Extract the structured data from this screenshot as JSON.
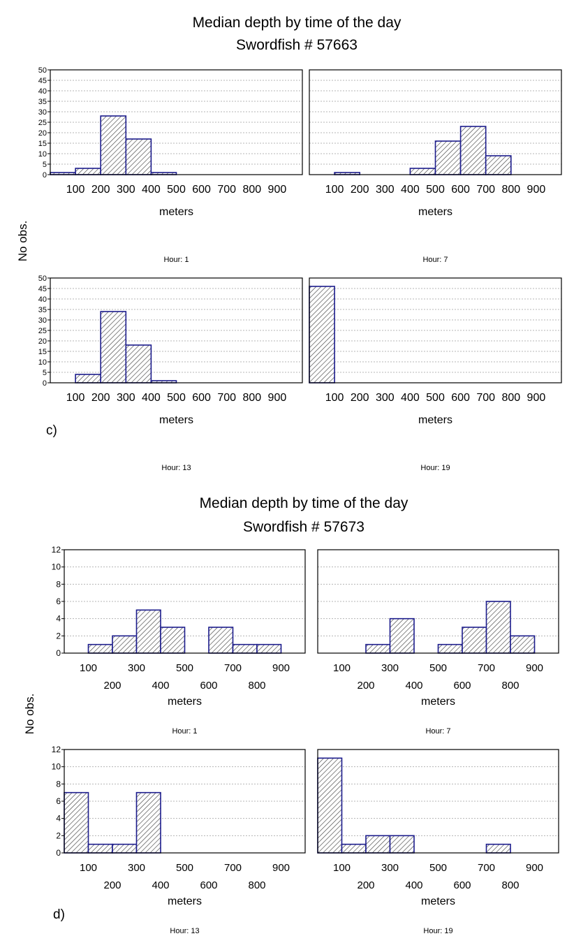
{
  "figure_c": {
    "title": "Median depth by time of the day",
    "subtitle": "Swordfish # 57663",
    "ylabel": "No obs.",
    "panel_label": "c)"
  },
  "figure_d": {
    "title": "Median depth by time of the day",
    "subtitle": "Swordfish # 57673",
    "ylabel": "No obs.",
    "panel_label": "d)"
  },
  "colors": {
    "bar_stroke": "#1c1c8c",
    "hatch": "#444444",
    "grid": "#b4b4b4",
    "axis": "#000000"
  },
  "chart_data": [
    {
      "type": "bar",
      "figure": "c",
      "hour_label": "Hour: 1",
      "xlabel": "meters",
      "ylim": [
        0,
        50
      ],
      "yticks": [
        "0",
        "5",
        "10",
        "15",
        "20",
        "25",
        "30",
        "35",
        "40",
        "45",
        "50"
      ],
      "xticks": [
        "100",
        "200",
        "300",
        "400",
        "500",
        "600",
        "700",
        "800",
        "900"
      ],
      "bins": [
        [
          0,
          100
        ],
        [
          100,
          200
        ],
        [
          200,
          300
        ],
        [
          300,
          400
        ],
        [
          400,
          500
        ],
        [
          500,
          600
        ],
        [
          600,
          700
        ],
        [
          700,
          800
        ],
        [
          800,
          900
        ],
        [
          900,
          1000
        ]
      ],
      "values": [
        1,
        3,
        28,
        17,
        1,
        0,
        0,
        0,
        0,
        0
      ]
    },
    {
      "type": "bar",
      "figure": "c",
      "hour_label": "Hour: 7",
      "xlabel": "meters",
      "ylim": [
        0,
        50
      ],
      "yticks": [],
      "xticks": [
        "100",
        "200",
        "300",
        "400",
        "500",
        "600",
        "700",
        "800",
        "900"
      ],
      "bins": [
        [
          0,
          100
        ],
        [
          100,
          200
        ],
        [
          200,
          300
        ],
        [
          300,
          400
        ],
        [
          400,
          500
        ],
        [
          500,
          600
        ],
        [
          600,
          700
        ],
        [
          700,
          800
        ],
        [
          800,
          900
        ],
        [
          900,
          1000
        ]
      ],
      "values": [
        0,
        1,
        0,
        0,
        3,
        16,
        23,
        9,
        0,
        0
      ]
    },
    {
      "type": "bar",
      "figure": "c",
      "hour_label": "Hour: 13",
      "xlabel": "meters",
      "ylim": [
        0,
        50
      ],
      "yticks": [
        "0",
        "5",
        "10",
        "15",
        "20",
        "25",
        "30",
        "35",
        "40",
        "45",
        "50"
      ],
      "xticks": [
        "100",
        "200",
        "300",
        "400",
        "500",
        "600",
        "700",
        "800",
        "900"
      ],
      "bins": [
        [
          0,
          100
        ],
        [
          100,
          200
        ],
        [
          200,
          300
        ],
        [
          300,
          400
        ],
        [
          400,
          500
        ],
        [
          500,
          600
        ],
        [
          600,
          700
        ],
        [
          700,
          800
        ],
        [
          800,
          900
        ],
        [
          900,
          1000
        ]
      ],
      "values": [
        0,
        4,
        34,
        18,
        1,
        0,
        0,
        0,
        0,
        0
      ]
    },
    {
      "type": "bar",
      "figure": "c",
      "hour_label": "Hour: 19",
      "xlabel": "meters",
      "ylim": [
        0,
        50
      ],
      "yticks": [],
      "xticks": [
        "100",
        "200",
        "300",
        "400",
        "500",
        "600",
        "700",
        "800",
        "900"
      ],
      "bins": [
        [
          0,
          100
        ],
        [
          100,
          200
        ],
        [
          200,
          300
        ],
        [
          300,
          400
        ],
        [
          400,
          500
        ],
        [
          500,
          600
        ],
        [
          600,
          700
        ],
        [
          700,
          800
        ],
        [
          800,
          900
        ],
        [
          900,
          1000
        ]
      ],
      "values": [
        46,
        0,
        0,
        0,
        0,
        0,
        0,
        0,
        0,
        0
      ]
    },
    {
      "type": "bar",
      "figure": "d",
      "hour_label": "Hour: 1",
      "xlabel": "meters",
      "ylim": [
        0,
        12
      ],
      "yticks": [
        "0",
        "2",
        "4",
        "6",
        "8",
        "10",
        "12"
      ],
      "xticks_upper": [
        "100",
        "300",
        "500",
        "700",
        "900"
      ],
      "xticks_lower": [
        "200",
        "400",
        "600",
        "800"
      ],
      "bins": [
        [
          0,
          100
        ],
        [
          100,
          200
        ],
        [
          200,
          300
        ],
        [
          300,
          400
        ],
        [
          400,
          500
        ],
        [
          500,
          600
        ],
        [
          600,
          700
        ],
        [
          700,
          800
        ],
        [
          800,
          900
        ],
        [
          900,
          1000
        ]
      ],
      "values": [
        0,
        1,
        2,
        5,
        3,
        0,
        3,
        1,
        1,
        0
      ]
    },
    {
      "type": "bar",
      "figure": "d",
      "hour_label": "Hour: 7",
      "xlabel": "meters",
      "ylim": [
        0,
        12
      ],
      "yticks": [],
      "xticks_upper": [
        "100",
        "300",
        "500",
        "700",
        "900"
      ],
      "xticks_lower": [
        "200",
        "400",
        "600",
        "800"
      ],
      "bins": [
        [
          0,
          100
        ],
        [
          100,
          200
        ],
        [
          200,
          300
        ],
        [
          300,
          400
        ],
        [
          400,
          500
        ],
        [
          500,
          600
        ],
        [
          600,
          700
        ],
        [
          700,
          800
        ],
        [
          800,
          900
        ],
        [
          900,
          1000
        ]
      ],
      "values": [
        0,
        0,
        1,
        4,
        0,
        1,
        3,
        6,
        2,
        0
      ]
    },
    {
      "type": "bar",
      "figure": "d",
      "hour_label": "Hour: 13",
      "xlabel": "meters",
      "ylim": [
        0,
        12
      ],
      "yticks": [
        "0",
        "2",
        "4",
        "6",
        "8",
        "10",
        "12"
      ],
      "xticks_upper": [
        "100",
        "300",
        "500",
        "700",
        "900"
      ],
      "xticks_lower": [
        "200",
        "400",
        "600",
        "800"
      ],
      "bins": [
        [
          0,
          100
        ],
        [
          100,
          200
        ],
        [
          200,
          300
        ],
        [
          300,
          400
        ],
        [
          400,
          500
        ],
        [
          500,
          600
        ],
        [
          600,
          700
        ],
        [
          700,
          800
        ],
        [
          800,
          900
        ],
        [
          900,
          1000
        ]
      ],
      "values": [
        7,
        1,
        1,
        7,
        0,
        0,
        0,
        0,
        0,
        0
      ]
    },
    {
      "type": "bar",
      "figure": "d",
      "hour_label": "Hour: 19",
      "xlabel": "meters",
      "ylim": [
        0,
        12
      ],
      "yticks": [],
      "xticks_upper": [
        "100",
        "300",
        "500",
        "700",
        "900"
      ],
      "xticks_lower": [
        "200",
        "400",
        "600",
        "800"
      ],
      "bins": [
        [
          0,
          100
        ],
        [
          100,
          200
        ],
        [
          200,
          300
        ],
        [
          300,
          400
        ],
        [
          400,
          500
        ],
        [
          500,
          600
        ],
        [
          600,
          700
        ],
        [
          700,
          800
        ],
        [
          800,
          900
        ],
        [
          900,
          1000
        ]
      ],
      "values": [
        11,
        1,
        2,
        2,
        0,
        0,
        0,
        1,
        0,
        0
      ]
    }
  ]
}
